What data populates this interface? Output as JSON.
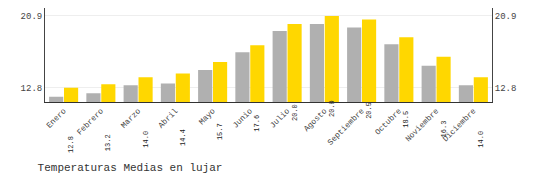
{
  "chart_data": {
    "type": "bar",
    "title": "Temperaturas Medias en lujar",
    "categories": [
      "Enero",
      "Febrero",
      "Marzo",
      "Abril",
      "Mayo",
      "Junio",
      "Julio",
      "Agosto",
      "Septiembre",
      "Octubre",
      "Noviembre",
      "Diciembre"
    ],
    "series": [
      {
        "color": "#B0B0B0",
        "values": [
          11.8,
          12.2,
          13.1,
          13.3,
          14.8,
          16.8,
          19.2,
          20.0,
          19.6,
          17.7,
          15.3,
          13.1
        ]
      },
      {
        "color": "#FFD700",
        "values": [
          12.8,
          13.2,
          14.0,
          14.4,
          15.7,
          17.6,
          20.0,
          20.9,
          20.5,
          18.5,
          16.3,
          14.0
        ],
        "data_labels": true,
        "value_labels": [
          "12.8",
          "13.2",
          "14.0",
          "14.4",
          "15.7",
          "17.6",
          "20.0",
          "20.9",
          "20.5",
          "18.5",
          "16.3",
          "14.0"
        ]
      }
    ],
    "ylim": [
      11.2,
      21.8
    ],
    "yticks": [
      12.8,
      20.9
    ],
    "y2lim": [
      11.2,
      21.8
    ],
    "y2ticks": [
      12.8,
      20.9
    ],
    "grid": true
  }
}
